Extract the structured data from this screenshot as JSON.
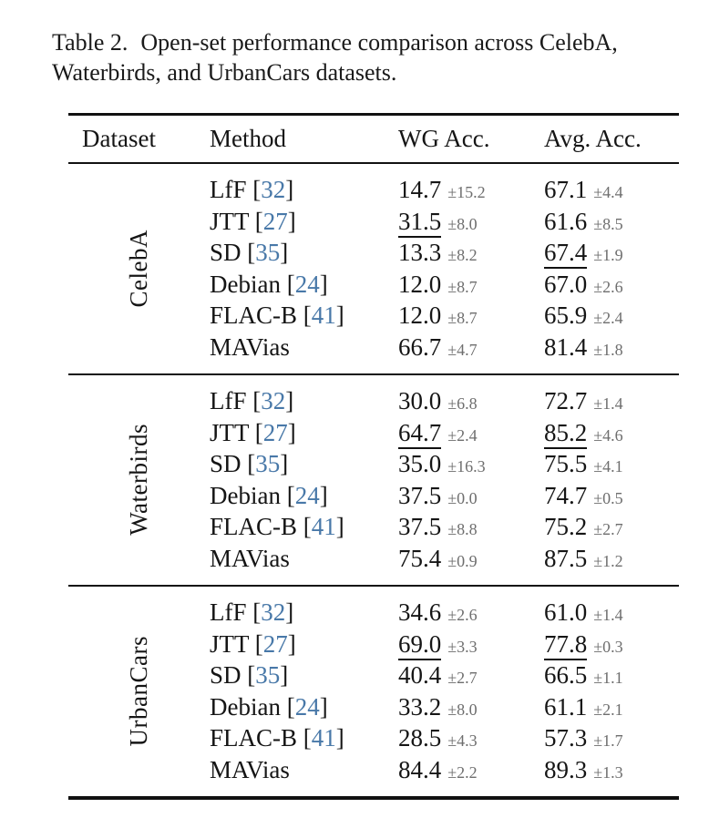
{
  "caption": {
    "label": "Table 2.",
    "line1": "Open-set performance comparison across CelebA,",
    "line2": "Waterbirds, and UrbanCars datasets."
  },
  "colors": {
    "citation_link": "#4878a8",
    "std_text": "#6e6e6e",
    "body_text": "#151515",
    "rule": "#111111",
    "background": "#ffffff"
  },
  "table": {
    "headers": [
      "Dataset",
      "Method",
      "WG Acc.",
      "Avg. Acc."
    ],
    "groups": [
      {
        "dataset": "CelebA",
        "rows": [
          {
            "method": "LfF",
            "cite": "32",
            "wg": "14.7",
            "wg_std": "±15.2",
            "wg_underline": false,
            "avg": "67.1",
            "avg_std": "±4.4",
            "avg_underline": false
          },
          {
            "method": "JTT",
            "cite": "27",
            "wg": "31.5",
            "wg_std": "±8.0",
            "wg_underline": true,
            "avg": "61.6",
            "avg_std": "±8.5",
            "avg_underline": false
          },
          {
            "method": "SD",
            "cite": "35",
            "wg": "13.3",
            "wg_std": "±8.2",
            "wg_underline": false,
            "avg": "67.4",
            "avg_std": "±1.9",
            "avg_underline": true
          },
          {
            "method": "Debian",
            "cite": "24",
            "wg": "12.0",
            "wg_std": "±8.7",
            "wg_underline": false,
            "avg": "67.0",
            "avg_std": "±2.6",
            "avg_underline": false
          },
          {
            "method": "FLAC-B",
            "cite": "41",
            "wg": "12.0",
            "wg_std": "±8.7",
            "wg_underline": false,
            "avg": "65.9",
            "avg_std": "±2.4",
            "avg_underline": false
          },
          {
            "method": "MAVias",
            "cite": null,
            "wg": "66.7",
            "wg_std": "±4.7",
            "wg_underline": false,
            "avg": "81.4",
            "avg_std": "±1.8",
            "avg_underline": false
          }
        ]
      },
      {
        "dataset": "Waterbirds",
        "rows": [
          {
            "method": "LfF",
            "cite": "32",
            "wg": "30.0",
            "wg_std": "±6.8",
            "wg_underline": false,
            "avg": "72.7",
            "avg_std": "±1.4",
            "avg_underline": false
          },
          {
            "method": "JTT",
            "cite": "27",
            "wg": "64.7",
            "wg_std": "±2.4",
            "wg_underline": true,
            "avg": "85.2",
            "avg_std": "±4.6",
            "avg_underline": true
          },
          {
            "method": "SD",
            "cite": "35",
            "wg": "35.0",
            "wg_std": "±16.3",
            "wg_underline": false,
            "avg": "75.5",
            "avg_std": "±4.1",
            "avg_underline": false
          },
          {
            "method": "Debian",
            "cite": "24",
            "wg": "37.5",
            "wg_std": "±0.0",
            "wg_underline": false,
            "avg": "74.7",
            "avg_std": "±0.5",
            "avg_underline": false
          },
          {
            "method": "FLAC-B",
            "cite": "41",
            "wg": "37.5",
            "wg_std": "±8.8",
            "wg_underline": false,
            "avg": "75.2",
            "avg_std": "±2.7",
            "avg_underline": false
          },
          {
            "method": "MAVias",
            "cite": null,
            "wg": "75.4",
            "wg_std": "±0.9",
            "wg_underline": false,
            "avg": "87.5",
            "avg_std": "±1.2",
            "avg_underline": false
          }
        ]
      },
      {
        "dataset": "UrbanCars",
        "rows": [
          {
            "method": "LfF",
            "cite": "32",
            "wg": "34.6",
            "wg_std": "±2.6",
            "wg_underline": false,
            "avg": "61.0",
            "avg_std": "±1.4",
            "avg_underline": false
          },
          {
            "method": "JTT",
            "cite": "27",
            "wg": "69.0",
            "wg_std": "±3.3",
            "wg_underline": true,
            "avg": "77.8",
            "avg_std": "±0.3",
            "avg_underline": true
          },
          {
            "method": "SD",
            "cite": "35",
            "wg": "40.4",
            "wg_std": "±2.7",
            "wg_underline": false,
            "avg": "66.5",
            "avg_std": "±1.1",
            "avg_underline": false
          },
          {
            "method": "Debian",
            "cite": "24",
            "wg": "33.2",
            "wg_std": "±8.0",
            "wg_underline": false,
            "avg": "61.1",
            "avg_std": "±2.1",
            "avg_underline": false
          },
          {
            "method": "FLAC-B",
            "cite": "41",
            "wg": "28.5",
            "wg_std": "±4.3",
            "wg_underline": false,
            "avg": "57.3",
            "avg_std": "±1.7",
            "avg_underline": false
          },
          {
            "method": "MAVias",
            "cite": null,
            "wg": "84.4",
            "wg_std": "±2.2",
            "wg_underline": false,
            "avg": "89.3",
            "avg_std": "±1.3",
            "avg_underline": false
          }
        ]
      }
    ]
  }
}
